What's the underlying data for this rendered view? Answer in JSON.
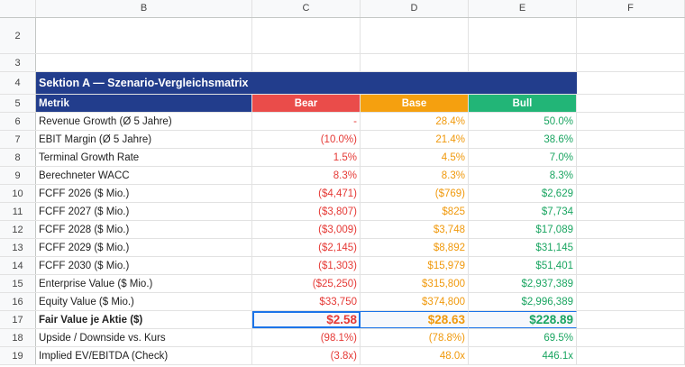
{
  "columns": [
    "B",
    "C",
    "D",
    "E",
    "F"
  ],
  "section_title": "Sektion A — Szenario-Vergleichsmatrix",
  "header": {
    "metric": "Metrik",
    "bear": "Bear",
    "base": "Base",
    "bull": "Bull"
  },
  "colors": {
    "navy": "#223d8c",
    "bear": "#ea4c4a",
    "base": "#f5a00f",
    "bull": "#22b577"
  },
  "rows": [
    {
      "num": "6",
      "label": "Revenue Growth (Ø 5 Jahre)",
      "bear": "-",
      "base": "28.4%",
      "bull": "50.0%"
    },
    {
      "num": "7",
      "label": "EBIT Margin (Ø 5 Jahre)",
      "bear": "(10.0%)",
      "base": "21.4%",
      "bull": "38.6%"
    },
    {
      "num": "8",
      "label": "Terminal Growth Rate",
      "bear": "1.5%",
      "base": "4.5%",
      "bull": "7.0%"
    },
    {
      "num": "9",
      "label": "Berechneter WACC",
      "bear": "8.3%",
      "base": "8.3%",
      "bull": "8.3%"
    },
    {
      "num": "10",
      "label": "FCFF 2026 ($ Mio.)",
      "bear": "($4,471)",
      "base": "($769)",
      "bull": "$2,629"
    },
    {
      "num": "11",
      "label": "FCFF 2027 ($ Mio.)",
      "bear": "($3,807)",
      "base": "$825",
      "bull": "$7,734"
    },
    {
      "num": "12",
      "label": "FCFF 2028 ($ Mio.)",
      "bear": "($3,009)",
      "base": "$3,748",
      "bull": "$17,089"
    },
    {
      "num": "13",
      "label": "FCFF 2029 ($ Mio.)",
      "bear": "($2,145)",
      "base": "$8,892",
      "bull": "$31,145"
    },
    {
      "num": "14",
      "label": "FCFF 2030 ($ Mio.)",
      "bear": "($1,303)",
      "base": "$15,979",
      "bull": "$51,401"
    },
    {
      "num": "15",
      "label": "Enterprise Value ($ Mio.)",
      "bear": "($25,250)",
      "base": "$315,800",
      "bull": "$2,937,389"
    },
    {
      "num": "16",
      "label": "Equity Value ($ Mio.)",
      "bear": "$33,750",
      "base": "$374,800",
      "bull": "$2,996,389"
    },
    {
      "num": "17",
      "label": "Fair Value je Aktie ($)",
      "bear": "$2.58",
      "base": "$28.63",
      "bull": "$228.89"
    },
    {
      "num": "18",
      "label": "Upside / Downside vs. Kurs",
      "bear": "(98.1%)",
      "base": "(78.8%)",
      "bull": "69.5%"
    },
    {
      "num": "19",
      "label": "Implied EV/EBITDA (Check)",
      "bear": "(3.8x)",
      "base": "48.0x",
      "bull": "446.1x"
    }
  ],
  "row_numbers": {
    "r2": "2",
    "r3": "3",
    "r4": "4",
    "r5": "5"
  }
}
